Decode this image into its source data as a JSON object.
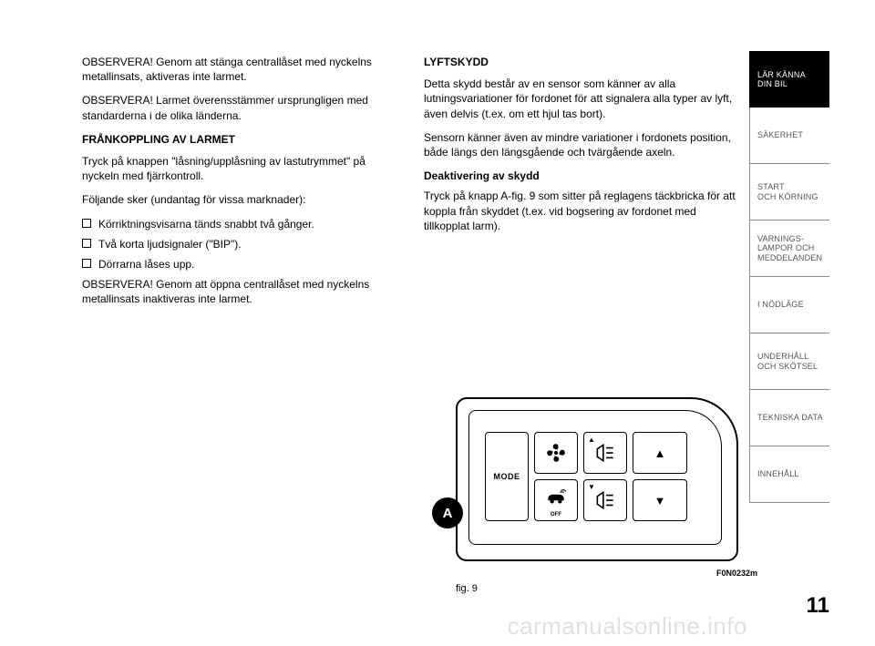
{
  "page_number": "11",
  "watermark": "carmanualsonline.info",
  "left_column": {
    "p1": "OBSERVERA! Genom att stänga centrallåset med nyckelns metallinsats, aktiveras inte larmet.",
    "p2": "OBSERVERA! Larmet överensstämmer ursprungligen med standarderna i de olika länderna.",
    "h1": "FRÅNKOPPLING AV LARMET",
    "p3": "Tryck på knappen \"låsning/upplåsning av lastutrymmet\" på nyckeln med fjärrkontroll.",
    "p4": "Följande sker (undantag för vissa marknader):",
    "b1": "Körriktningsvisarna tänds snabbt två gånger.",
    "b2": "Två korta ljudsignaler (\"BIP\").",
    "b3": "Dörrarna låses upp.",
    "p5": "OBSERVERA! Genom att öppna centrallåset med nyckelns metallinsats inaktiveras inte larmet."
  },
  "right_column": {
    "h1": "LYFTSKYDD",
    "p1": "Detta skydd består av en sensor som känner av alla lutningsvariationer för fordonet för att signalera alla typer av lyft, även delvis (t.ex. om ett hjul tas bort).",
    "p2": "Sensorn känner även av mindre variationer i fordonets position, både längs den längsgående och tvärgående axeln.",
    "h2": "Deaktivering av skydd",
    "p3": "Tryck på knapp A-fig. 9 som sitter på reglagens täckbricka för att koppla från skyddet (t.ex. vid bogsering av fordonet med tillkopplat larm)."
  },
  "tabs": [
    {
      "label": "LÄR KÄNNA\nDIN BIL",
      "active": true
    },
    {
      "label": "SÄKERHET",
      "active": false
    },
    {
      "label": "START\nOCH KÖRNING",
      "active": false
    },
    {
      "label": "VARNINGS-\nLAMPOR OCH\nMEDDELANDEN",
      "active": false
    },
    {
      "label": "I NÖDLÄGE",
      "active": false
    },
    {
      "label": "UNDERHÅLL\nOCH SKÖTSEL",
      "active": false
    },
    {
      "label": "TEKNISKA DATA",
      "active": false
    },
    {
      "label": "INNEHÅLL",
      "active": false
    }
  ],
  "figure": {
    "caption": "fig. 9",
    "code": "F0N0232m",
    "knob_label": "A",
    "mode_label": "MODE",
    "off_label": "OFF",
    "colors": {
      "stroke": "#000000",
      "bg": "#ffffff",
      "knob_bg": "#000000",
      "knob_fg": "#ffffff"
    }
  }
}
